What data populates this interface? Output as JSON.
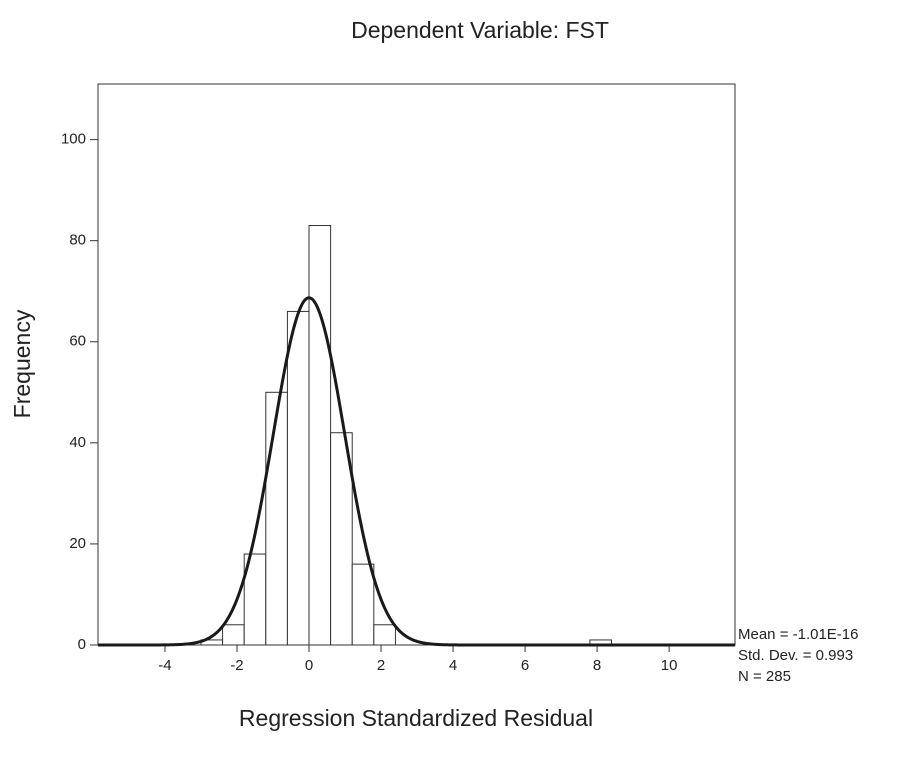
{
  "chart_data": {
    "type": "histogram",
    "title": "Dependent Variable: FST",
    "x_label": "Regression Standardized Residual",
    "y_label": "Frequency",
    "bins": [
      -3.0,
      -2.4,
      -1.8,
      -1.2,
      -0.6,
      0,
      0.6,
      1.2,
      1.8,
      2.4,
      3.0,
      3.6,
      4.2,
      4.8,
      5.4,
      6.0,
      6.6,
      7.2,
      7.8,
      8.4
    ],
    "values": [
      1,
      4,
      18,
      50,
      66,
      83,
      42,
      16,
      4,
      0,
      0,
      0,
      0,
      0,
      0,
      0,
      0,
      0,
      1
    ],
    "color": "#ffffff",
    "curve_color": "#1a1a1a",
    "xlim": [
      -5.86,
      11.83
    ],
    "ylim": [
      0,
      111
    ],
    "xticks": [
      -4,
      -2,
      0,
      2,
      4,
      6,
      8,
      10
    ],
    "yticks": [
      0,
      20,
      40,
      60,
      80,
      100
    ],
    "grid": false,
    "stats": [
      {
        "value": -1.01e-16,
        "label": "Mean = -1.01E-16"
      },
      {
        "value": 0.993,
        "label": "Std. Dev. = 0.993"
      },
      {
        "value": 285,
        "label": "N = 285"
      }
    ]
  }
}
